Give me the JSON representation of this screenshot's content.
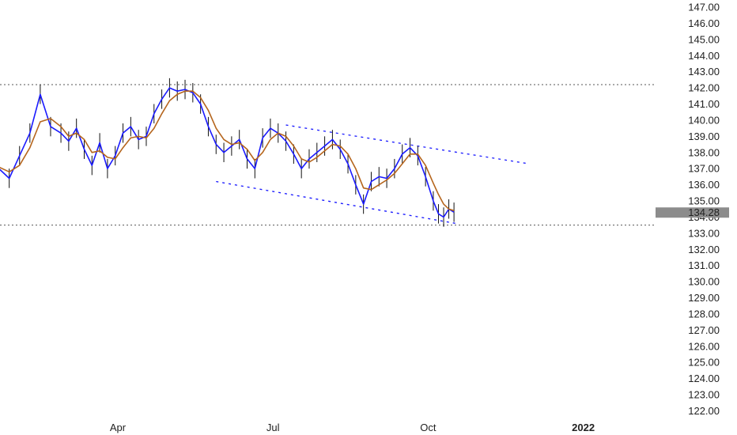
{
  "chart_data": {
    "type": "line",
    "title": "",
    "xlabel": "",
    "ylabel": "",
    "ylim": [
      121.5,
      147.5
    ],
    "y_ticks": [
      "147.00",
      "146.00",
      "145.00",
      "144.00",
      "143.00",
      "142.00",
      "141.00",
      "140.00",
      "139.00",
      "138.00",
      "137.00",
      "136.00",
      "135.00",
      "134.00",
      "133.00",
      "132.00",
      "131.00",
      "130.00",
      "129.00",
      "128.00",
      "127.00",
      "126.00",
      "125.00",
      "124.00",
      "123.00",
      "122.00"
    ],
    "x_ticks": [
      {
        "label": "Apr",
        "month": 4
      },
      {
        "label": "Jul",
        "month": 7
      },
      {
        "label": "Oct",
        "month": 10
      },
      {
        "label": "2022",
        "month": 13
      }
    ],
    "x_range_months": [
      1.5,
      14.4
    ],
    "last_price": {
      "label": "134.28",
      "value": 134.28,
      "color": "#8c8c8c"
    },
    "horizontal_levels": [
      142.2,
      133.5
    ],
    "trend_channel": {
      "upper": {
        "start": [
          7.25,
          139.7
        ],
        "end": [
          11.95,
          137.3
        ]
      },
      "lower": {
        "start": [
          5.9,
          136.2
        ],
        "end": [
          10.55,
          133.6
        ]
      }
    },
    "series": [
      {
        "style": "price",
        "color": "#1a1aff",
        "x": [
          1.5,
          1.7,
          1.9,
          2.1,
          2.3,
          2.5,
          2.7,
          2.9,
          3.05,
          3.2,
          3.35,
          3.5,
          3.65,
          3.8,
          3.95,
          4.1,
          4.25,
          4.4,
          4.55,
          4.7,
          4.85,
          5.0,
          5.15,
          5.3,
          5.45,
          5.6,
          5.75,
          5.9,
          6.05,
          6.2,
          6.35,
          6.5,
          6.65,
          6.8,
          6.95,
          7.1,
          7.25,
          7.4,
          7.55,
          7.7,
          7.85,
          8.0,
          8.15,
          8.3,
          8.45,
          8.6,
          8.75,
          8.9,
          9.05,
          9.2,
          9.35,
          9.5,
          9.65,
          9.8,
          9.95,
          10.1,
          10.2,
          10.3,
          10.4,
          10.5
        ],
        "values": [
          137.2,
          137.0,
          136.4,
          137.8,
          139.2,
          141.6,
          139.6,
          139.2,
          138.7,
          139.5,
          138.2,
          137.2,
          138.6,
          137.0,
          137.8,
          139.2,
          139.6,
          138.8,
          139.0,
          140.4,
          141.3,
          142.0,
          141.8,
          141.9,
          141.7,
          141.0,
          139.6,
          138.5,
          138.0,
          138.4,
          138.8,
          137.6,
          137.0,
          138.9,
          139.5,
          139.2,
          138.7,
          137.9,
          137.0,
          137.6,
          138.0,
          138.4,
          138.8,
          138.2,
          137.3,
          136.0,
          134.8,
          136.2,
          136.5,
          136.4,
          137.0,
          137.9,
          138.3,
          137.8,
          136.5,
          135.0,
          134.2,
          134.0,
          134.5,
          134.3
        ]
      },
      {
        "style": "moving-average",
        "color": "#b5651d",
        "x": [
          1.5,
          1.7,
          1.9,
          2.1,
          2.3,
          2.5,
          2.7,
          2.9,
          3.05,
          3.2,
          3.35,
          3.5,
          3.65,
          3.8,
          3.95,
          4.1,
          4.25,
          4.4,
          4.55,
          4.7,
          4.85,
          5.0,
          5.15,
          5.3,
          5.45,
          5.6,
          5.75,
          5.9,
          6.05,
          6.2,
          6.35,
          6.5,
          6.65,
          6.8,
          6.95,
          7.1,
          7.25,
          7.4,
          7.55,
          7.7,
          7.85,
          8.0,
          8.15,
          8.3,
          8.45,
          8.6,
          8.75,
          8.9,
          9.05,
          9.2,
          9.35,
          9.5,
          9.65,
          9.8,
          9.95,
          10.1,
          10.2,
          10.3,
          10.4,
          10.5
        ],
        "values": [
          137.2,
          137.1,
          136.8,
          137.2,
          138.3,
          139.9,
          140.1,
          139.6,
          139.0,
          139.2,
          138.8,
          138.0,
          138.1,
          137.7,
          137.6,
          138.3,
          138.9,
          139.0,
          138.9,
          139.5,
          140.4,
          141.2,
          141.6,
          141.8,
          141.8,
          141.4,
          140.6,
          139.5,
          138.8,
          138.5,
          138.6,
          138.2,
          137.5,
          138.0,
          138.8,
          139.2,
          139.0,
          138.4,
          137.6,
          137.4,
          137.7,
          138.1,
          138.5,
          138.4,
          137.9,
          137.0,
          135.8,
          135.7,
          136.0,
          136.3,
          136.7,
          137.3,
          137.9,
          137.9,
          137.2,
          136.1,
          135.4,
          134.8,
          134.5,
          134.4
        ]
      }
    ]
  }
}
